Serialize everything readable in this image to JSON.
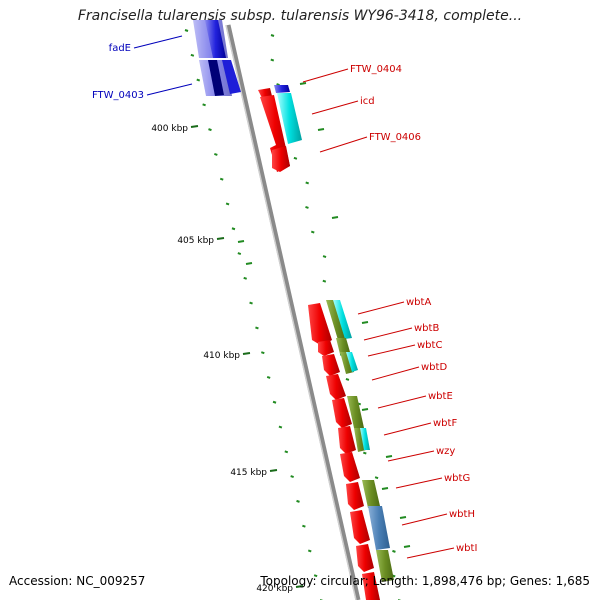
{
  "header": {
    "title": "Francisella tularensis subsp. tularensis WY96-3418, complete..."
  },
  "footer": {
    "accession": "Accession: NC_009257",
    "summary": "Topology: circular; Length: 1,898,476 bp; Genes: 1,685"
  },
  "scale": {
    "ticks": [
      "400 kbp",
      "405 kbp",
      "410 kbp",
      "415 kbp",
      "420 kbp"
    ]
  },
  "genes_left": [
    {
      "label": "fadE",
      "color": "#0000bb"
    },
    {
      "label": "FTW_0403",
      "color": "#0000bb"
    }
  ],
  "genes_right": [
    {
      "label": "FTW_0404",
      "color": "#cc0000"
    },
    {
      "label": "icd",
      "color": "#cc0000"
    },
    {
      "label": "FTW_0406",
      "color": "#cc0000"
    },
    {
      "label": "wbtA",
      "color": "#cc0000"
    },
    {
      "label": "wbtB",
      "color": "#cc0000"
    },
    {
      "label": "wbtC",
      "color": "#cc0000"
    },
    {
      "label": "wbtD",
      "color": "#cc0000"
    },
    {
      "label": "wbtE",
      "color": "#cc0000"
    },
    {
      "label": "wbtF",
      "color": "#cc0000"
    },
    {
      "label": "wzy",
      "color": "#cc0000"
    },
    {
      "label": "wbtG",
      "color": "#cc0000"
    },
    {
      "label": "wbtH",
      "color": "#cc0000"
    },
    {
      "label": "wbtI",
      "color": "#cc0000"
    }
  ],
  "colors": {
    "backbone": "#8a8a8a",
    "minus_strand": "#2222dd",
    "plus_strand": "#ee1111",
    "cog_a": "#00e0e0",
    "cog_b": "#6b8e23",
    "cog_c": "#4a7fb5",
    "gc_dots": "#228b22"
  }
}
